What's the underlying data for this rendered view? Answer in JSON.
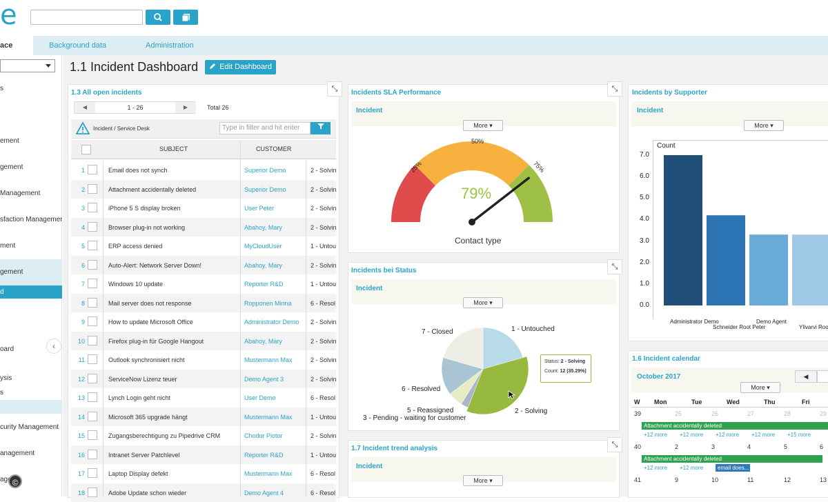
{
  "header": {
    "logo": "e",
    "search_placeholder": ""
  },
  "tabs": [
    {
      "label": "ace"
    },
    {
      "label": "Background data"
    },
    {
      "label": "Administration"
    }
  ],
  "sidebar": {
    "items": [
      {
        "label": "s"
      },
      {
        "label": "ement"
      },
      {
        "label": "gement"
      },
      {
        "label": "Management"
      },
      {
        "label": "sfaction Managemen"
      },
      {
        "label": "ment"
      },
      {
        "label": "gement"
      },
      {
        "label": "d"
      },
      {
        "label": "oard"
      },
      {
        "label": "ysis"
      },
      {
        "label": "s"
      },
      {
        "label": "curity Management"
      },
      {
        "label": "anagement"
      },
      {
        "label": "agen"
      }
    ],
    "collapse_glyph": "‹",
    "copyright": "©"
  },
  "page": {
    "title": "1.1 Incident Dashboard",
    "edit_button": "Edit Dashboard"
  },
  "incidents": {
    "title": "1.3 All open incidents",
    "pager": {
      "range": "1 - 26",
      "total": "Total 26"
    },
    "context": "Incident / Service Desk",
    "filter_placeholder": "Type in filter and hit enter",
    "columns": [
      "SUBJECT",
      "CUSTOMER"
    ],
    "rows": [
      {
        "n": "1",
        "subject": "Email does not synch",
        "customer": "Superior Demo",
        "status": "2 - Solvin"
      },
      {
        "n": "2",
        "subject": "Attachment accidentally deleted",
        "customer": "Superior Demo",
        "status": "2 - Solvin"
      },
      {
        "n": "3",
        "subject": "iPhone 5 S display broken",
        "customer": "User Peter",
        "status": "2 - Solvin"
      },
      {
        "n": "4",
        "subject": "Browser plug-in not working",
        "customer": "Abahoy, Mary",
        "status": "2 - Solvin"
      },
      {
        "n": "5",
        "subject": "ERP access denied",
        "customer": "MyCloudUser",
        "status": "1 - Untou"
      },
      {
        "n": "6",
        "subject": "Auto-Alert: Network Server Down!",
        "customer": "Abahoy, Mary",
        "status": "2 - Solvin"
      },
      {
        "n": "7",
        "subject": "Windows 10 update",
        "customer": "Reporter R&D",
        "status": "1 - Untou"
      },
      {
        "n": "8",
        "subject": "Mail server does not response",
        "customer": "Ropponen Minna",
        "status": "6 - Resol"
      },
      {
        "n": "9",
        "subject": "How to update Microsoft Office",
        "customer": "Administrator Demo",
        "status": "2 - Solvin"
      },
      {
        "n": "10",
        "subject": "Firefox plug-in für Google Hangout",
        "customer": "Abahoy, Mary",
        "status": "2 - Solvin"
      },
      {
        "n": "11",
        "subject": "Outlook synchronisiert nicht",
        "customer": "Mustermann Max",
        "status": "2 - Solvin"
      },
      {
        "n": "12",
        "subject": "ServiceNow Lizenz teuer",
        "customer": "Demo Agent 3",
        "status": "2 - Solvin"
      },
      {
        "n": "13",
        "subject": "Lynch Login geht nicht",
        "customer": "User Demo",
        "status": "6 - Resol"
      },
      {
        "n": "14",
        "subject": "Microsoft 365 upgrade hängt",
        "customer": "Mustermann Max",
        "status": "1 - Untou"
      },
      {
        "n": "15",
        "subject": "Zugangsberechtigung zu Pipedrive CRM",
        "customer": "Chodur Piotor",
        "status": "2 - Solvin"
      },
      {
        "n": "16",
        "subject": "Intranet Server Patchlevel",
        "customer": "Reporter R&D",
        "status": "1 - Untou"
      },
      {
        "n": "17",
        "subject": "Laptop Display defekt",
        "customer": "Mustermann Max",
        "status": "6 - Resol"
      },
      {
        "n": "18",
        "subject": "Adobe Update schon wieder",
        "customer": "Demo Agent 4",
        "status": "6 - Resol"
      }
    ]
  },
  "sla": {
    "title": "Incidents SLA Performance",
    "sub": "Incident",
    "more": "More",
    "value": "79%",
    "value_num": 79,
    "marks": [
      "25%",
      "50%",
      "75%"
    ],
    "label": "Contact type",
    "colors": {
      "red": "#df4a4a",
      "orange": "#f7b13e",
      "green": "#9ec044"
    }
  },
  "status_pie": {
    "title": "Incidents bei Status",
    "sub": "Incident",
    "more": "More",
    "tooltip": {
      "status_label": "Status:",
      "status_value": "2 - Solving",
      "count_label": "Count:",
      "count_value": "12 (35.29%)"
    }
  },
  "supporter": {
    "title": "Incidents by Supporter",
    "sub": "Incident",
    "more": "More"
  },
  "trend": {
    "title": "1.7 Incident trend analysis",
    "sub": "Incident",
    "more": "More"
  },
  "calendar": {
    "title": "1.6 Incident calendar",
    "month": "October 2017",
    "more": "More",
    "headers": [
      "W",
      "Mon",
      "Tue",
      "Wed",
      "Thu",
      "Fri"
    ],
    "weeks": [
      {
        "w": "39",
        "days": [
          "25",
          "26",
          "27",
          "28",
          "29"
        ],
        "dim": true,
        "more": [
          "+12 more",
          "+12 more",
          "+12 more",
          "+12 more",
          "+15 more"
        ],
        "event": "Attachment accidentally deleted"
      },
      {
        "w": "40",
        "days": [
          "2",
          "3",
          "4",
          "5",
          "6"
        ],
        "dim": false,
        "more": [
          "+12 more",
          "+12 more"
        ],
        "event": "Attachment accidentally deleted",
        "event2": "email does..."
      },
      {
        "w": "41",
        "days": [
          "9",
          "10",
          "11",
          "12",
          "13"
        ],
        "dim": false
      }
    ]
  },
  "chart_data": [
    {
      "type": "pie",
      "title": "Incidents bei Status",
      "categories": [
        "1 - Untouched",
        "2 - Solving",
        "3 - Pending - waiting for customer",
        "5 - Reassigned",
        "6 - Resolved",
        "7 - Closed"
      ],
      "values": [
        7,
        12,
        1,
        2,
        5,
        7
      ],
      "colors": [
        "#b7dbe8",
        "#98b940",
        "#a9b8c4",
        "#e6ecc4",
        "#a9c4d2",
        "#efeee6"
      ]
    },
    {
      "type": "bar",
      "title": "Incidents by Supporter",
      "ylabel": "Count",
      "categories": [
        "Administrator Demo",
        "Schneider Root Peter",
        "Demo Agent",
        "Ylivarvi Root"
      ],
      "values": [
        7.0,
        4.2,
        3.3,
        3.3
      ],
      "ylim": [
        0,
        7.0
      ],
      "yticks": [
        "0.0",
        "1.0",
        "2.0",
        "3.0",
        "4.0",
        "5.0",
        "6.0",
        "7.0"
      ],
      "colors": [
        "#1f4e79",
        "#2e75b6",
        "#6aaad6",
        "#9ec8e6"
      ]
    }
  ]
}
